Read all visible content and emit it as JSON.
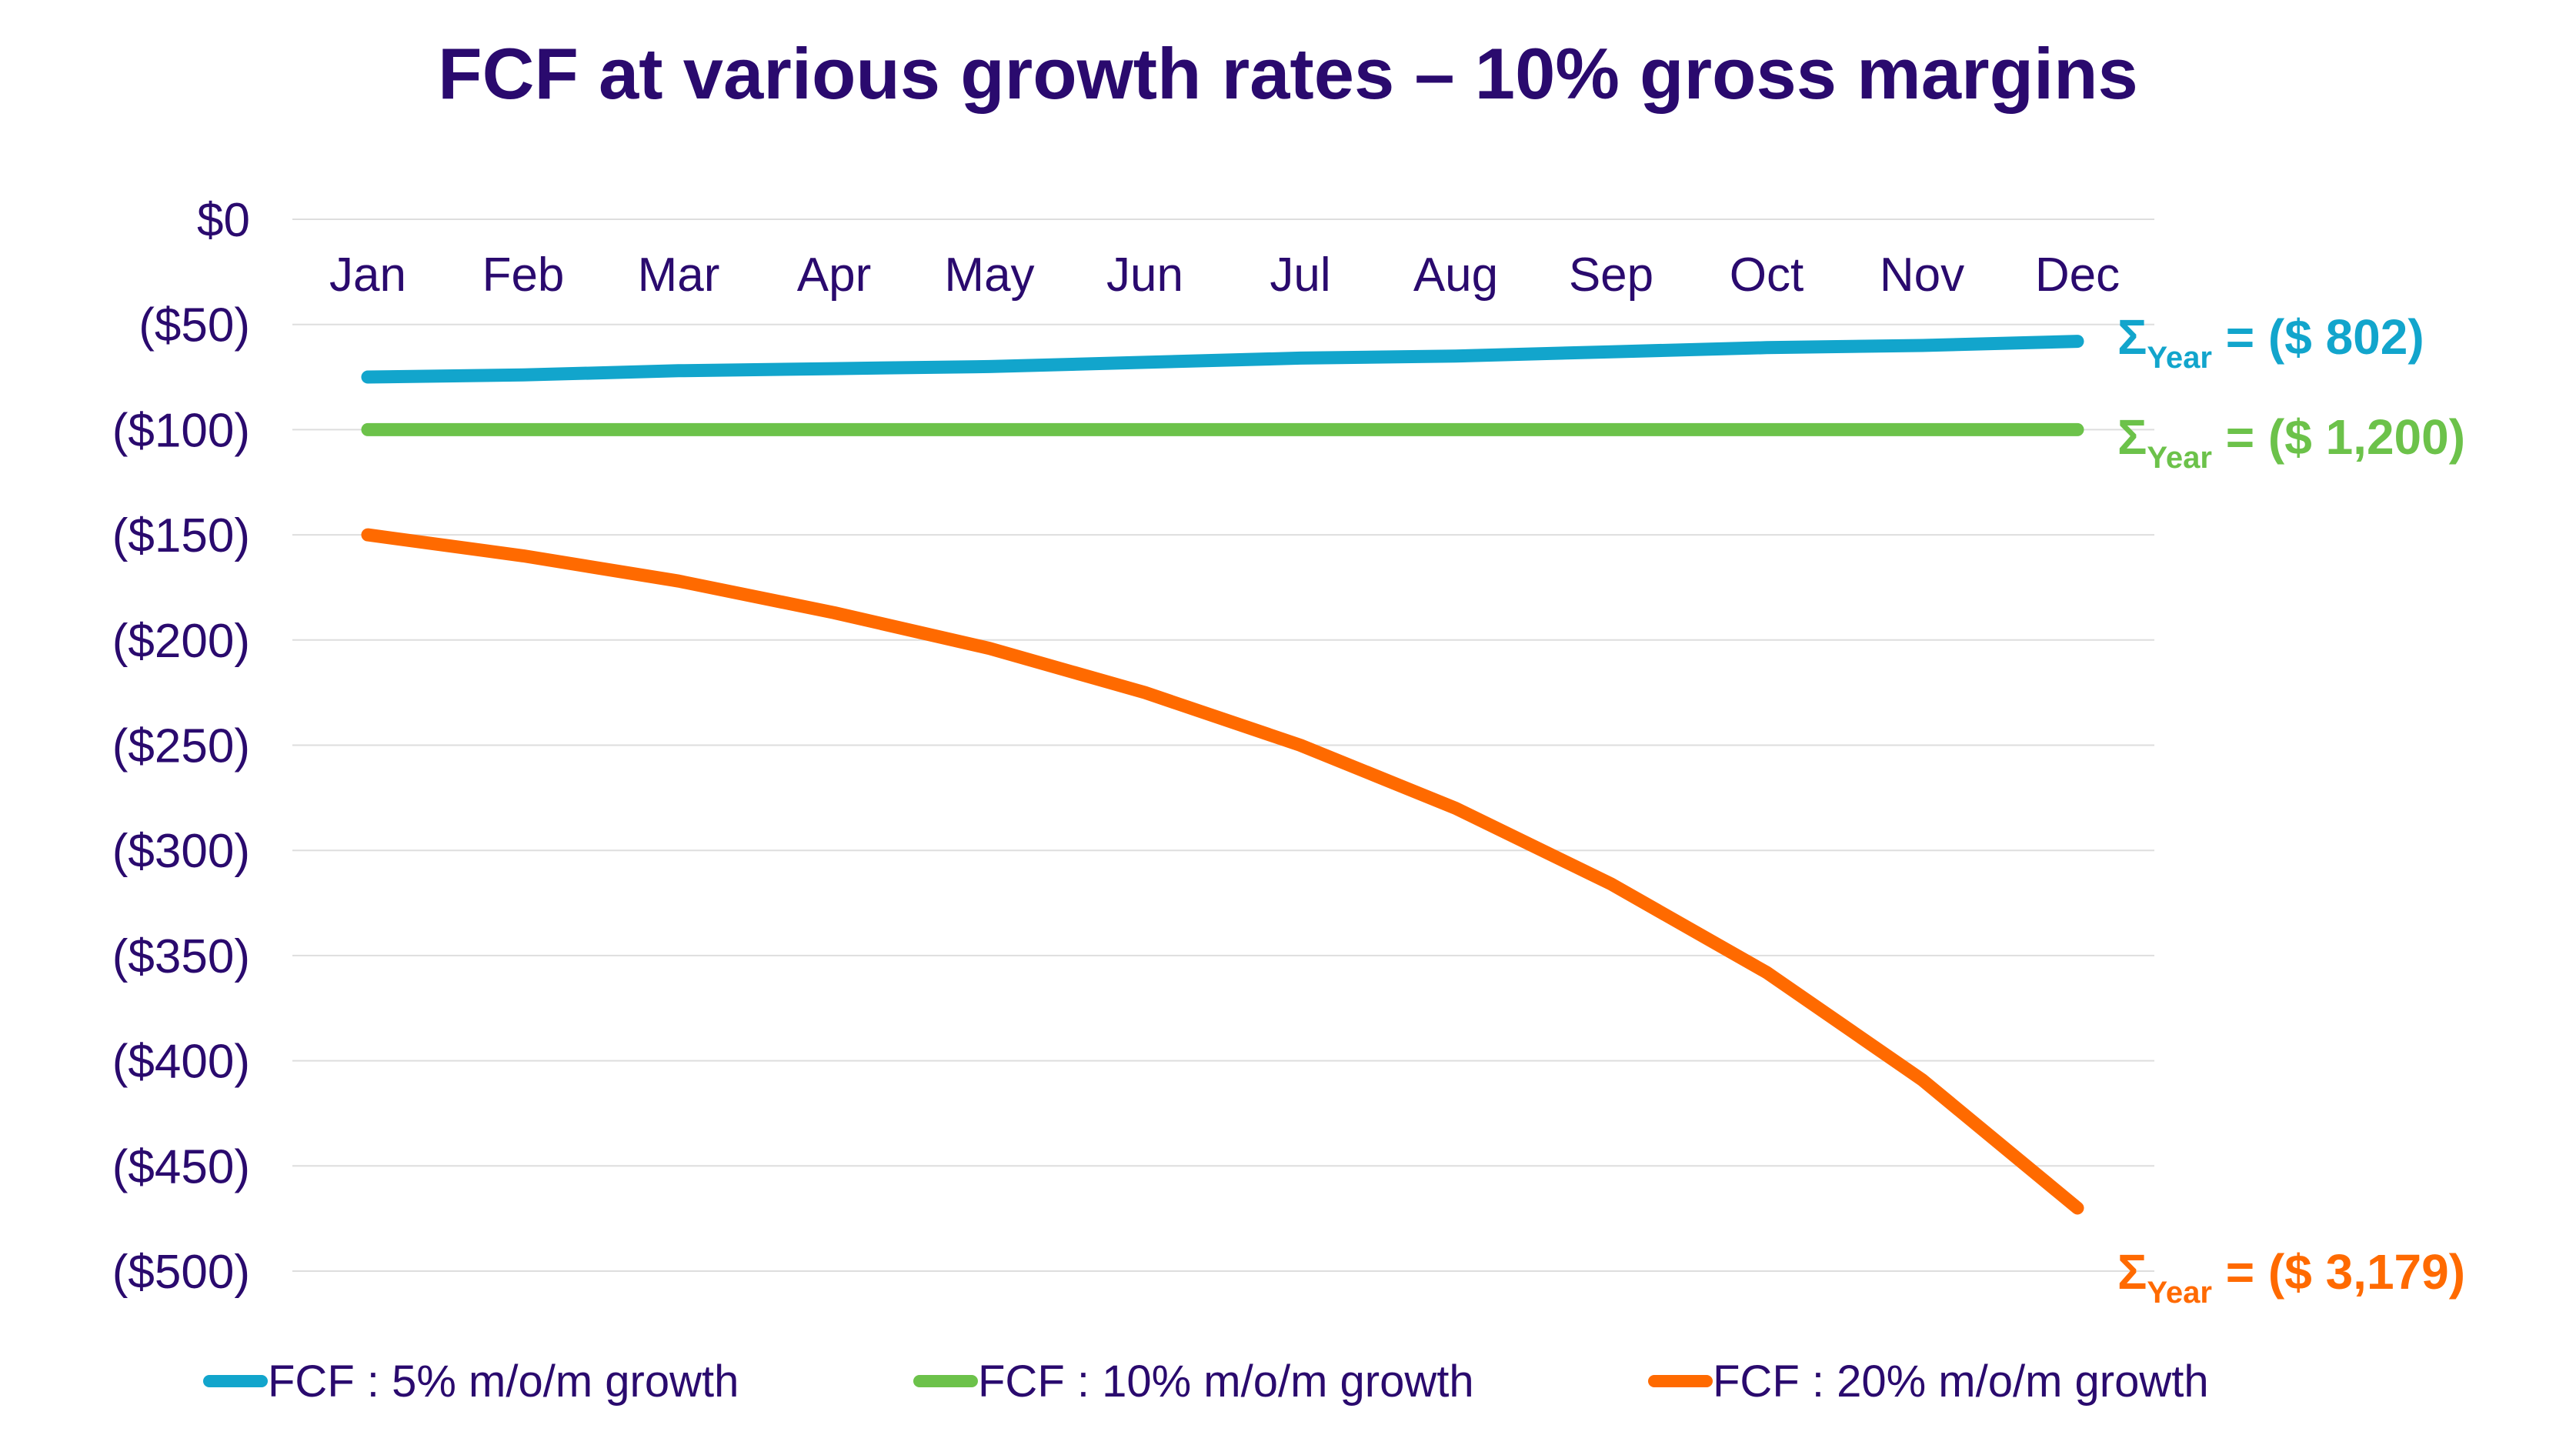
{
  "chart_data": {
    "type": "line",
    "title": "FCF at various growth rates – 10% gross margins",
    "xlabel": "",
    "ylabel": "",
    "categories": [
      "Jan",
      "Feb",
      "Mar",
      "Apr",
      "May",
      "Jun",
      "Jul",
      "Aug",
      "Sep",
      "Oct",
      "Nov",
      "Dec"
    ],
    "y_ticks": [
      "$0",
      "($50)",
      "($100)",
      "($150)",
      "($200)",
      "($250)",
      "($300)",
      "($350)",
      "($400)",
      "($450)",
      "($500)"
    ],
    "ylim": [
      -500,
      0
    ],
    "grid": true,
    "legend_position": "bottom",
    "series": [
      {
        "name": "FCF : 5% m/o/m growth",
        "color": "#12a5cc",
        "values": [
          -75,
          -74,
          -72,
          -71,
          -70,
          -68,
          -66,
          -65,
          -63,
          -61,
          -60,
          -58
        ],
        "annotation": {
          "sigma": "Σ",
          "sub": "Year",
          "text": " = ($ 802)"
        }
      },
      {
        "name": "FCF : 10% m/o/m growth",
        "color": "#6cc24a",
        "values": [
          -100,
          -100,
          -100,
          -100,
          -100,
          -100,
          -100,
          -100,
          -100,
          -100,
          -100,
          -100
        ],
        "annotation": {
          "sigma": "Σ",
          "sub": "Year",
          "text": " = ($ 1,200)"
        }
      },
      {
        "name": "FCF : 20% m/o/m growth",
        "color": "#ff6a00",
        "values": [
          -150,
          -160,
          -172,
          -187,
          -204,
          -225,
          -250,
          -280,
          -316,
          -358,
          -409,
          -470
        ],
        "annotation": {
          "sigma": "Σ",
          "sub": "Year",
          "text": " = ($ 3,179)"
        }
      }
    ]
  }
}
